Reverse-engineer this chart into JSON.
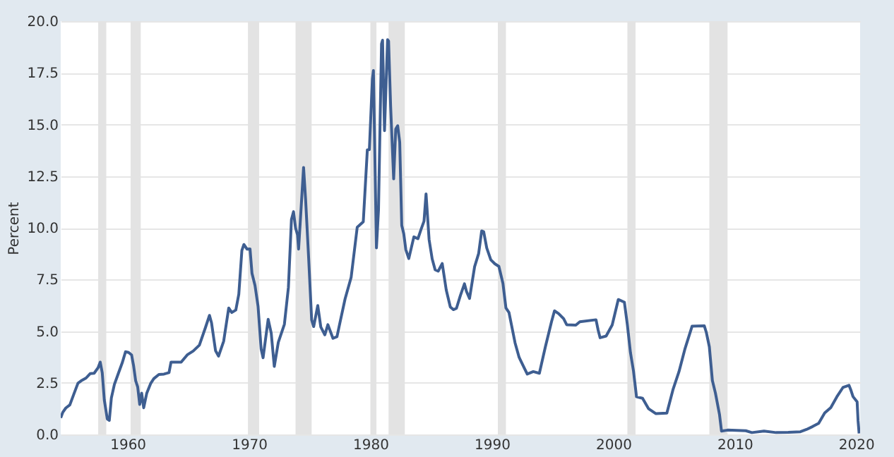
{
  "chart_data": {
    "type": "line",
    "ylabel": "Percent",
    "x": [
      "1954-07",
      "1954-09",
      "1954-12",
      "1955-04",
      "1955-08",
      "1955-12",
      "1956-04",
      "1956-08",
      "1956-12",
      "1957-04",
      "1957-08",
      "1957-10",
      "1957-12",
      "1958-02",
      "1958-05",
      "1958-07",
      "1958-09",
      "1958-12",
      "1959-04",
      "1959-08",
      "1959-11",
      "1960-02",
      "1960-05",
      "1960-07",
      "1960-09",
      "1960-11",
      "1961-01",
      "1961-03",
      "1961-05",
      "1961-08",
      "1961-12",
      "1962-03",
      "1962-08",
      "1963-01",
      "1963-06",
      "1963-08",
      "1964-06",
      "1964-12",
      "1965-06",
      "1965-12",
      "1966-06",
      "1966-10",
      "1966-12",
      "1967-04",
      "1967-07",
      "1967-12",
      "1968-05",
      "1968-08",
      "1968-12",
      "1969-03",
      "1969-06",
      "1969-08",
      "1969-11",
      "1970-02",
      "1970-04",
      "1970-07",
      "1970-10",
      "1971-01",
      "1971-03",
      "1971-08",
      "1971-11",
      "1972-02",
      "1972-06",
      "1972-12",
      "1973-04",
      "1973-07",
      "1973-09",
      "1973-11",
      "1974-01",
      "1974-02",
      "1974-04",
      "1974-07",
      "1974-09",
      "1974-12",
      "1975-03",
      "1975-05",
      "1975-09",
      "1975-12",
      "1976-04",
      "1976-07",
      "1976-12",
      "1977-04",
      "1977-07",
      "1977-12",
      "1978-06",
      "1978-12",
      "1979-06",
      "1979-10",
      "1979-12",
      "1980-03",
      "1980-04",
      "1980-07",
      "1980-09",
      "1980-12",
      "1981-01",
      "1981-03",
      "1981-06",
      "1981-07",
      "1981-09",
      "1981-12",
      "1982-02",
      "1982-04",
      "1982-06",
      "1982-08",
      "1982-10",
      "1982-12",
      "1983-03",
      "1983-08",
      "1983-12",
      "1984-03",
      "1984-06",
      "1984-08",
      "1984-11",
      "1985-02",
      "1985-05",
      "1985-08",
      "1985-12",
      "1986-04",
      "1986-08",
      "1986-11",
      "1987-02",
      "1987-06",
      "1987-10",
      "1987-12",
      "1988-03",
      "1988-08",
      "1988-12",
      "1989-03",
      "1989-05",
      "1989-08",
      "1989-12",
      "1990-04",
      "1990-08",
      "1990-12",
      "1991-03",
      "1991-06",
      "1991-12",
      "1992-04",
      "1992-09",
      "1992-12",
      "1993-06",
      "1993-12",
      "1994-06",
      "1994-12",
      "1995-03",
      "1995-07",
      "1995-12",
      "1996-03",
      "1996-12",
      "1997-04",
      "1998-08",
      "1998-10",
      "1998-12",
      "1999-06",
      "1999-12",
      "2000-06",
      "2000-12",
      "2001-03",
      "2001-06",
      "2001-09",
      "2001-12",
      "2002-06",
      "2002-12",
      "2003-07",
      "2004-06",
      "2004-12",
      "2005-06",
      "2005-12",
      "2006-07",
      "2007-07",
      "2007-09",
      "2007-12",
      "2008-03",
      "2008-06",
      "2008-10",
      "2008-12",
      "2009-06",
      "2010-12",
      "2011-06",
      "2012-06",
      "2013-06",
      "2014-06",
      "2015-06",
      "2015-12",
      "2016-06",
      "2016-12",
      "2017-06",
      "2017-12",
      "2018-06",
      "2018-12",
      "2019-06",
      "2019-08",
      "2019-10",
      "2020-02",
      "2020-03",
      "2020-04"
    ],
    "series": [
      {
        "color": "#3e5e91",
        "values": [
          0.8,
          1.07,
          1.28,
          1.43,
          1.96,
          2.48,
          2.62,
          2.73,
          2.94,
          2.96,
          3.24,
          3.5,
          2.98,
          1.67,
          0.75,
          0.68,
          1.76,
          2.42,
          2.96,
          3.5,
          4.0,
          3.97,
          3.85,
          3.32,
          2.6,
          2.3,
          1.45,
          2.0,
          1.29,
          2.0,
          2.48,
          2.7,
          2.9,
          2.92,
          2.99,
          3.5,
          3.5,
          3.85,
          4.04,
          4.32,
          5.17,
          5.76,
          5.4,
          4.05,
          3.79,
          4.51,
          6.12,
          5.9,
          6.02,
          6.79,
          8.9,
          9.19,
          8.97,
          8.98,
          7.8,
          7.21,
          6.2,
          4.14,
          3.71,
          5.57,
          4.9,
          3.29,
          4.46,
          5.33,
          7.12,
          10.4,
          10.78,
          10.0,
          9.65,
          8.97,
          10.51,
          12.92,
          11.34,
          8.53,
          5.54,
          5.22,
          6.24,
          5.2,
          4.82,
          5.31,
          4.65,
          4.73,
          5.42,
          6.56,
          7.6,
          10.03,
          10.29,
          13.77,
          13.78,
          17.19,
          17.61,
          9.03,
          10.87,
          18.9,
          19.08,
          14.7,
          19.1,
          19.04,
          15.87,
          12.37,
          14.78,
          14.94,
          14.15,
          10.12,
          9.71,
          8.95,
          8.51,
          9.56,
          9.47,
          9.91,
          10.32,
          11.64,
          9.43,
          8.5,
          7.97,
          7.9,
          8.27,
          6.99,
          6.17,
          6.04,
          6.1,
          6.73,
          7.29,
          6.92,
          6.58,
          8.12,
          8.76,
          9.85,
          9.81,
          9.02,
          8.45,
          8.26,
          8.13,
          7.31,
          6.12,
          5.9,
          4.43,
          3.73,
          3.22,
          2.92,
          3.04,
          2.96,
          4.25,
          5.45,
          5.98,
          5.85,
          5.6,
          5.31,
          5.29,
          5.45,
          5.55,
          5.07,
          4.68,
          4.76,
          5.3,
          6.53,
          6.4,
          5.31,
          3.97,
          3.07,
          1.82,
          1.75,
          1.24,
          1.01,
          1.03,
          2.16,
          3.04,
          4.16,
          5.24,
          5.26,
          4.94,
          4.24,
          2.61,
          2.0,
          0.97,
          0.16,
          0.21,
          0.18,
          0.09,
          0.16,
          0.09,
          0.1,
          0.13,
          0.24,
          0.38,
          0.54,
          1.04,
          1.3,
          1.82,
          2.27,
          2.38,
          2.13,
          1.83,
          1.58,
          0.65,
          0.05
        ]
      }
    ],
    "xlim": [
      "1954-07",
      "2020-05"
    ],
    "xticks": [
      "1960",
      "1970",
      "1980",
      "1990",
      "2000",
      "2010",
      "2020"
    ],
    "ylim": [
      0,
      20
    ],
    "yticks": [
      {
        "value": 0,
        "label": "0.0"
      },
      {
        "value": 2.5,
        "label": "2.5"
      },
      {
        "value": 5,
        "label": "5.0"
      },
      {
        "value": 7.5,
        "label": "7.5"
      },
      {
        "value": 10,
        "label": "10.0"
      },
      {
        "value": 12.5,
        "label": "12.5"
      },
      {
        "value": 15,
        "label": "15.0"
      },
      {
        "value": 17.5,
        "label": "17.5"
      },
      {
        "value": 20,
        "label": "20.0"
      }
    ],
    "bands": [
      {
        "axis": "x",
        "from": "1957-08",
        "to": "1958-04",
        "color": "#e3e3e3"
      },
      {
        "axis": "x",
        "from": "1960-04",
        "to": "1961-02",
        "color": "#e3e3e3"
      },
      {
        "axis": "x",
        "from": "1969-12",
        "to": "1970-11",
        "color": "#e3e3e3"
      },
      {
        "axis": "x",
        "from": "1973-11",
        "to": "1975-03",
        "color": "#e3e3e3"
      },
      {
        "axis": "x",
        "from": "1980-01",
        "to": "1980-07",
        "color": "#e3e3e3"
      },
      {
        "axis": "x",
        "from": "1981-07",
        "to": "1982-11",
        "color": "#e3e3e3"
      },
      {
        "axis": "x",
        "from": "1990-07",
        "to": "1991-03",
        "color": "#e3e3e3"
      },
      {
        "axis": "x",
        "from": "2001-03",
        "to": "2001-11",
        "color": "#e3e3e3"
      },
      {
        "axis": "x",
        "from": "2007-12",
        "to": "2009-06",
        "color": "#e3e3e3"
      }
    ],
    "grid": "y",
    "marker": "none",
    "line_style": "solid"
  }
}
